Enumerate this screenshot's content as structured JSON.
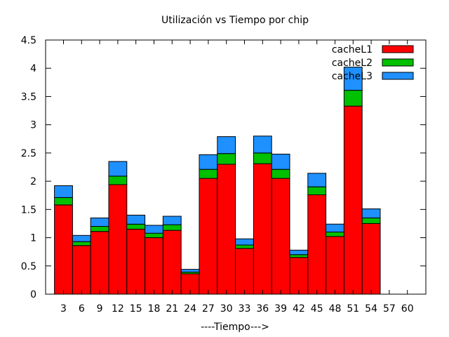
{
  "chart_data": {
    "type": "bar",
    "stacked": true,
    "title": "Utilización vs Tiempo por chip",
    "xlabel": "----Tiempo--->",
    "ylabel": "",
    "ylim": [
      0,
      4.5
    ],
    "yticks": [
      "0",
      "0.5",
      "1",
      "1.5",
      "2",
      "2.5",
      "3",
      "3.5",
      "4",
      "4.5"
    ],
    "categories": [
      "3",
      "6",
      "9",
      "12",
      "15",
      "18",
      "21",
      "24",
      "27",
      "30",
      "33",
      "36",
      "39",
      "42",
      "45",
      "48",
      "51",
      "54",
      "57",
      "60"
    ],
    "legend_position": "top-right",
    "grid": false,
    "series": [
      {
        "name": "cacheL1",
        "color": "#ff0000",
        "values": [
          1.58,
          0.86,
          1.11,
          1.94,
          1.15,
          1.0,
          1.13,
          0.36,
          2.05,
          2.3,
          0.81,
          2.31,
          2.05,
          0.65,
          1.76,
          1.02,
          3.33,
          1.25,
          0,
          0
        ]
      },
      {
        "name": "cacheL2",
        "color": "#00c000",
        "values": [
          0.13,
          0.07,
          0.09,
          0.15,
          0.09,
          0.08,
          0.1,
          0.03,
          0.16,
          0.19,
          0.06,
          0.19,
          0.16,
          0.05,
          0.14,
          0.08,
          0.28,
          0.1,
          0,
          0
        ]
      },
      {
        "name": "cacheL3",
        "color": "#1e90ff",
        "values": [
          0.21,
          0.11,
          0.15,
          0.26,
          0.16,
          0.14,
          0.15,
          0.05,
          0.26,
          0.3,
          0.11,
          0.3,
          0.27,
          0.08,
          0.24,
          0.14,
          0.41,
          0.16,
          0,
          0
        ]
      }
    ]
  }
}
